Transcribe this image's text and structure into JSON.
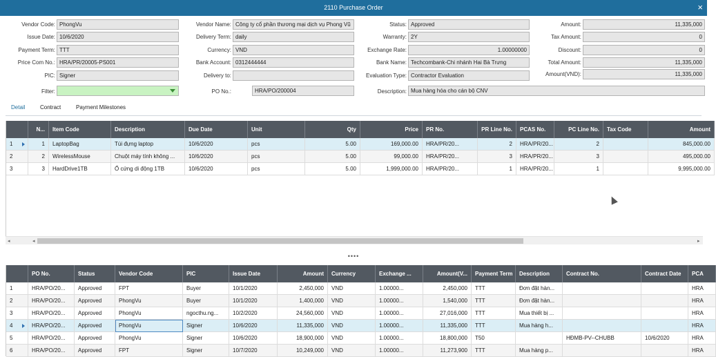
{
  "window": {
    "title": "2110 Purchase Order",
    "close_symbol": "×"
  },
  "form": {
    "vendor_code": {
      "label": "Vendor Code:",
      "value": "PhongVu"
    },
    "issue_date": {
      "label": "Issue Date:",
      "value": "10/6/2020"
    },
    "payment_term": {
      "label": "Payment Term:",
      "value": "TTT"
    },
    "price_com_no": {
      "label": "Price Com No.:",
      "value": "HRA/PR/20005-PS001"
    },
    "pic": {
      "label": "PIC:",
      "value": "Signer"
    },
    "filter": {
      "label": "Filter:",
      "value": ""
    },
    "vendor_name": {
      "label": "Vendor Name:",
      "value": "Công ty cổ phần thương mại dịch vụ Phong Vũ"
    },
    "delivery_term": {
      "label": "Delivery Term:",
      "value": "daily"
    },
    "currency": {
      "label": "Currency:",
      "value": "VND"
    },
    "bank_account": {
      "label": "Bank Account:",
      "value": "0312444444"
    },
    "delivery_to": {
      "label": "Delivery to:",
      "value": ""
    },
    "po_no": {
      "label": "PO No.:",
      "value": "HRA/PO/200004"
    },
    "status": {
      "label": "Status:",
      "value": "Approved"
    },
    "warranty": {
      "label": "Warranty:",
      "value": "2Y"
    },
    "exchange_rate": {
      "label": "Exchange Rate:",
      "value": "1.00000000"
    },
    "bank_name": {
      "label": "Bank Name:",
      "value": "Techcombank-Chi nhánh Hai Bà Trưng"
    },
    "evaluation_type": {
      "label": "Evaluation Type:",
      "value": "Contractor Evaluation"
    },
    "description": {
      "label": "Description:",
      "value": "Mua hàng hóa cho cán bộ CNV"
    },
    "amount": {
      "label": "Amount:",
      "value": "11,335,000"
    },
    "tax_amount": {
      "label": "Tax Amount:",
      "value": "0"
    },
    "discount": {
      "label": "Discount:",
      "value": "0"
    },
    "total_amount": {
      "label": "Total Amount:",
      "value": "11,335,000"
    },
    "amount_vnd": {
      "label": "Amount(VND):",
      "value": "11,335,000"
    }
  },
  "tabs": [
    "Detail",
    "Contract",
    "Payment Milestones"
  ],
  "detail_grid": {
    "columns": [
      "N...",
      "Item Code",
      "Description",
      "Due Date",
      "Unit",
      "Qty",
      "Price",
      "PR No.",
      "PR Line No.",
      "PCAS No.",
      "PC Line No.",
      "Tax Code",
      "Amount"
    ],
    "rows": [
      {
        "idx": "1",
        "selected": true,
        "cells": [
          "1",
          "LaptopBag",
          "Túi đựng laptop",
          "10/6/2020",
          "pcs",
          "5.00",
          "169,000.00",
          "HRA/PR/20...",
          "2",
          "HRA/PR/20...",
          "2",
          "",
          "845,000.00"
        ]
      },
      {
        "idx": "2",
        "selected": false,
        "cells": [
          "2",
          "WirelessMouse",
          "Chuột máy tính không ...",
          "10/6/2020",
          "pcs",
          "5.00",
          "99,000.00",
          "HRA/PR/20...",
          "3",
          "HRA/PR/20...",
          "3",
          "",
          "495,000.00"
        ]
      },
      {
        "idx": "3",
        "selected": false,
        "cells": [
          "3",
          "HardDrive1TB",
          "Ổ cứng  di động 1TB",
          "10/6/2020",
          "pcs",
          "5.00",
          "1,999,000.00",
          "HRA/PR/20...",
          "1",
          "HRA/PR/20...",
          "1",
          "",
          "9,995,000.00"
        ]
      }
    ]
  },
  "scroll": {
    "left": "◂",
    "right": "▸"
  },
  "splitter": "••••",
  "po_grid": {
    "columns": [
      "PO No.",
      "Status",
      "Vendor Code",
      "PIC",
      "Issue Date",
      "Amount",
      "Currency",
      "Exchange ...",
      "Amount(V...",
      "Payment Term",
      "Description",
      "Contract No.",
      "Contract Date",
      "PCA"
    ],
    "rows": [
      {
        "idx": "1",
        "selected": false,
        "cells": [
          "HRA/PO/20...",
          "Approved",
          "FPT",
          "Buyer",
          "10/1/2020",
          "2,450,000",
          "VND",
          "1.00000...",
          "2,450,000",
          "TTT",
          "Đơn đặt hàn...",
          "",
          "",
          "HRA"
        ]
      },
      {
        "idx": "2",
        "selected": false,
        "cells": [
          "HRA/PO/20...",
          "Approved",
          "PhongVu",
          "Buyer",
          "10/1/2020",
          "1,400,000",
          "VND",
          "1.00000...",
          "1,540,000",
          "TTT",
          "Đơn đặt hàn...",
          "",
          "",
          "HRA"
        ]
      },
      {
        "idx": "3",
        "selected": false,
        "cells": [
          "HRA/PO/20...",
          "Approved",
          "PhongVu",
          "ngocthu.ng...",
          "10/2/2020",
          "24,560,000",
          "VND",
          "1.00000...",
          "27,016,000",
          "TTT",
          "Mua thiết bị ...",
          "",
          "",
          "HRA"
        ]
      },
      {
        "idx": "4",
        "selected": true,
        "cells": [
          "HRA/PO/20...",
          "Approved",
          "PhongVu",
          "Signer",
          "10/6/2020",
          "11,335,000",
          "VND",
          "1.00000...",
          "11,335,000",
          "TTT",
          "Mua hàng h...",
          "",
          "",
          "HRA"
        ]
      },
      {
        "idx": "5",
        "selected": false,
        "cells": [
          "HRA/PO/20...",
          "Approved",
          "PhongVu",
          "Signer",
          "10/6/2020",
          "18,900,000",
          "VND",
          "1.00000...",
          "18,800,000",
          "T50",
          "",
          "HĐMB-PV--CHUBB",
          "10/6/2020",
          "HRA"
        ]
      },
      {
        "idx": "6",
        "selected": false,
        "cells": [
          "HRA/PO/20...",
          "Approved",
          "FPT",
          "Signer",
          "10/7/2020",
          "10,249,000",
          "VND",
          "1.00000...",
          "11,273,900",
          "TTT",
          "Mua hàng p...",
          "",
          "",
          "HRA"
        ]
      }
    ]
  }
}
